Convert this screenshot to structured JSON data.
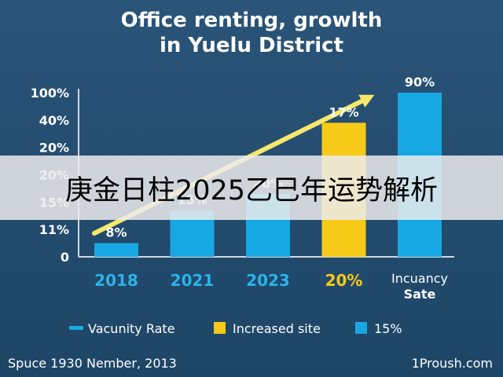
{
  "title_lines": [
    "Office renting, growlth",
    "in Yuelu District"
  ],
  "chart_data": {
    "type": "bar",
    "title": "Office renting, growlth in Yuelu District",
    "categories": [
      "2018",
      "2021",
      "2023",
      "20%",
      "Incuancy Sate"
    ],
    "category_lines": [
      [
        "2018"
      ],
      [
        "2021"
      ],
      [
        "2023"
      ],
      [
        "20%"
      ],
      [
        "Incuancy",
        "Sate"
      ]
    ],
    "category_colors": [
      "#2bb3ea",
      "#2bb3ea",
      "#2bb3ea",
      "#f7ca18",
      "#ffffff"
    ],
    "y_tick_labels": [
      "0",
      "11%",
      "15%",
      "20%",
      "20%",
      "40%",
      "100%"
    ],
    "values": [
      0.5,
      1.7,
      2.3,
      4.9,
      6.0
    ],
    "data_labels": [
      "8%",
      "15%",
      "20%",
      "17%",
      "90%"
    ],
    "bar_colors": [
      "#17a8e3",
      "#17a8e3",
      "#17a8e3",
      "#f7ca18",
      "#17a8e3"
    ],
    "legend": [
      {
        "label": "Vacunity Rate",
        "color": "#17a8e3",
        "marker": "line"
      },
      {
        "label": "Increased site",
        "color": "#f7ca18",
        "marker": "square"
      },
      {
        "label": "15%",
        "color": "#17a8e3",
        "marker": "square"
      }
    ],
    "trend_arrow_color": "#f5e86a",
    "legend_position": "bottom",
    "grid": false
  },
  "footer": {
    "source": "Spuce 1930 Nember, 2013",
    "site": "1Proush.com"
  },
  "banner": {
    "text": "庚金日柱2025乙巳年运势解析"
  }
}
